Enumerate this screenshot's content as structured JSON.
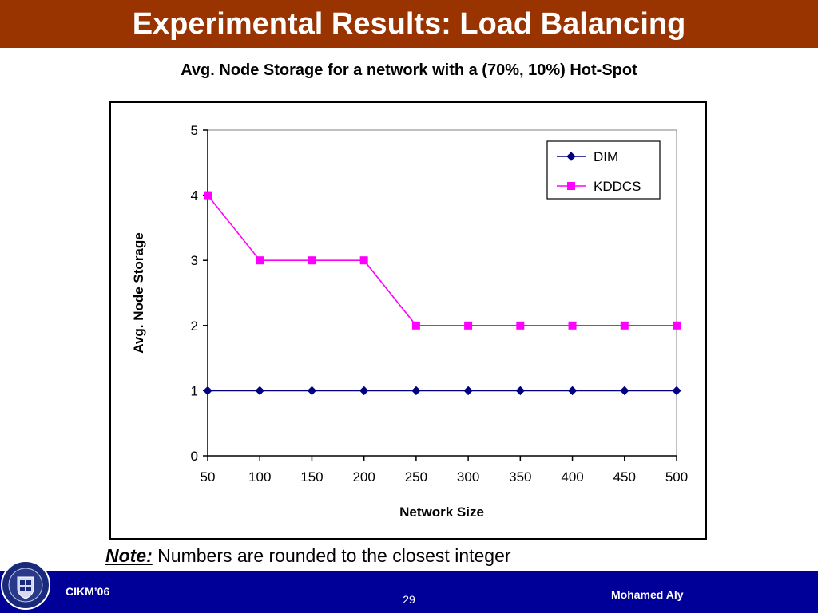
{
  "slide": {
    "title": "Experimental Results: Load Balancing",
    "note_label": "Note:",
    "note_text": " Numbers are rounded to the closest integer",
    "footer_left": "CIKM’06",
    "footer_page": "29",
    "footer_right": "Mohamed Aly",
    "colors": {
      "title_bar": "#993300",
      "footer_bar": "#000099"
    }
  },
  "chart_data": {
    "type": "line",
    "title": "Avg. Node Storage for a network with a (70%, 10%) Hot-Spot",
    "xlabel": "Network Size",
    "ylabel": "Avg. Node Storage",
    "categories": [
      "50",
      "100",
      "150",
      "200",
      "250",
      "300",
      "350",
      "400",
      "450",
      "500"
    ],
    "ylim": [
      0,
      5
    ],
    "yticks": [
      "0",
      "1",
      "2",
      "3",
      "4",
      "5"
    ],
    "grid": false,
    "legend": "top-right",
    "series": [
      {
        "name": "DIM",
        "color": "#000080",
        "marker": "diamond",
        "values": [
          1,
          1,
          1,
          1,
          1,
          1,
          1,
          1,
          1,
          1
        ]
      },
      {
        "name": "KDDCS",
        "color": "#FF00FF",
        "marker": "square",
        "values": [
          4,
          3,
          3,
          3,
          2,
          2,
          2,
          2,
          2,
          2
        ]
      }
    ]
  }
}
